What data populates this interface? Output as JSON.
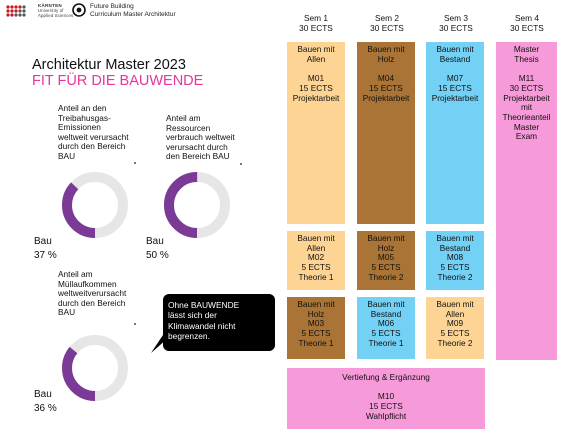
{
  "header": {
    "logo_org_lines": [
      "KÄRNTEN",
      "University of",
      "Applied Sciences"
    ],
    "logo_icon": "dot-grid-logo",
    "project_icon": "circle-logo",
    "project_lines": [
      "Future Building",
      "Curriculum Master Architektur"
    ]
  },
  "title": "Architektur Master 2023",
  "subtitle": "FIT FÜR DIE BAUWENDE",
  "stats": [
    {
      "label": "Anteil an den Treibahusgas-Emissionen weltweit verursacht durch den Bereich BAU",
      "lines": [
        "Anteil an den",
        "Treibahusgas-",
        "Emissionen",
        "weltweit verursacht",
        "durch  den Bereich",
        "BAU"
      ],
      "category": "Bau",
      "percent": 37,
      "percent_text": "37 %"
    },
    {
      "label": "Anteil am Ressourcen verbrauch weltweit verursacht durch den Bereich BAU",
      "lines": [
        "Anteil am",
        "Ressourcen",
        "verbrauch weltweit",
        "verursacht durch",
        "den Bereich BAU"
      ],
      "category": "Bau",
      "percent": 50,
      "percent_text": "50 %"
    },
    {
      "label": "Anteil am Müllaufkommen weltweitverursacht durch den Bereich BAU",
      "lines": [
        "Anteil am",
        "Müllaufkommen",
        "weltweitverursacht",
        "durch den Bereich",
        "BAU"
      ],
      "category": "Bau",
      "percent": 36,
      "percent_text": "36 %"
    }
  ],
  "bubble_lines": [
    "Ohne BAUWENDE",
    "lässt sich der",
    "Klimawandel nicht",
    "begrenzen."
  ],
  "colors": {
    "accent": "#e7359b",
    "donut": "#7a3a96",
    "donut_track": "#e6e6e6",
    "yellow": "#fdd493",
    "brown": "#a97435",
    "blue": "#73d1f5",
    "pink": "#f79ad9"
  },
  "semesters": [
    {
      "name": "Sem 1",
      "ects": "30 ECTS"
    },
    {
      "name": "Sem 2",
      "ects": "30 ECTS"
    },
    {
      "name": "Sem 3",
      "ects": "30 ECTS"
    },
    {
      "name": "Sem 4",
      "ects": "30 ECTS"
    }
  ],
  "modules": {
    "m01": [
      "Bauen mit",
      "Allen",
      "",
      "M01",
      "15 ECTS",
      "Projektarbeit"
    ],
    "m04": [
      "Bauen mit",
      "Holz",
      "",
      "M04",
      "15 ECTS",
      "Projektarbeit"
    ],
    "m07": [
      "Bauen mit",
      "Bestand",
      "",
      "M07",
      "15 ECTS",
      "Projektarbeit"
    ],
    "m11": [
      "Master",
      "Thesis",
      "",
      "M11",
      "30 ECTS",
      "Projektarbeit",
      "mit",
      "Theorieanteil",
      "Master",
      "Exam"
    ],
    "m02": [
      "Bauen mit",
      "Allen",
      "M02",
      "5 ECTS",
      "Theorie 1"
    ],
    "m05": [
      "Bauen mit",
      "Holz",
      "M05",
      "5 ECTS",
      "Theorie 2"
    ],
    "m08": [
      "Bauen mit",
      "Bestand",
      "M08",
      "5 ECTS",
      "Theorie 2"
    ],
    "m03": [
      "Bauen mit",
      "Holz",
      "M03",
      "5 ECTS",
      "Theorie 1"
    ],
    "m06": [
      "Bauen mit",
      "Bestand",
      "M06",
      "5 ECTS",
      "Theorie 1"
    ],
    "m09": [
      "Bauen mit",
      "Allen",
      "M09",
      "5 ECTS",
      "Theorie 2"
    ],
    "m10": [
      "Vertiefung & Ergänzung",
      "",
      "M10",
      "15 ECTS",
      "Wahlpflicht"
    ]
  }
}
